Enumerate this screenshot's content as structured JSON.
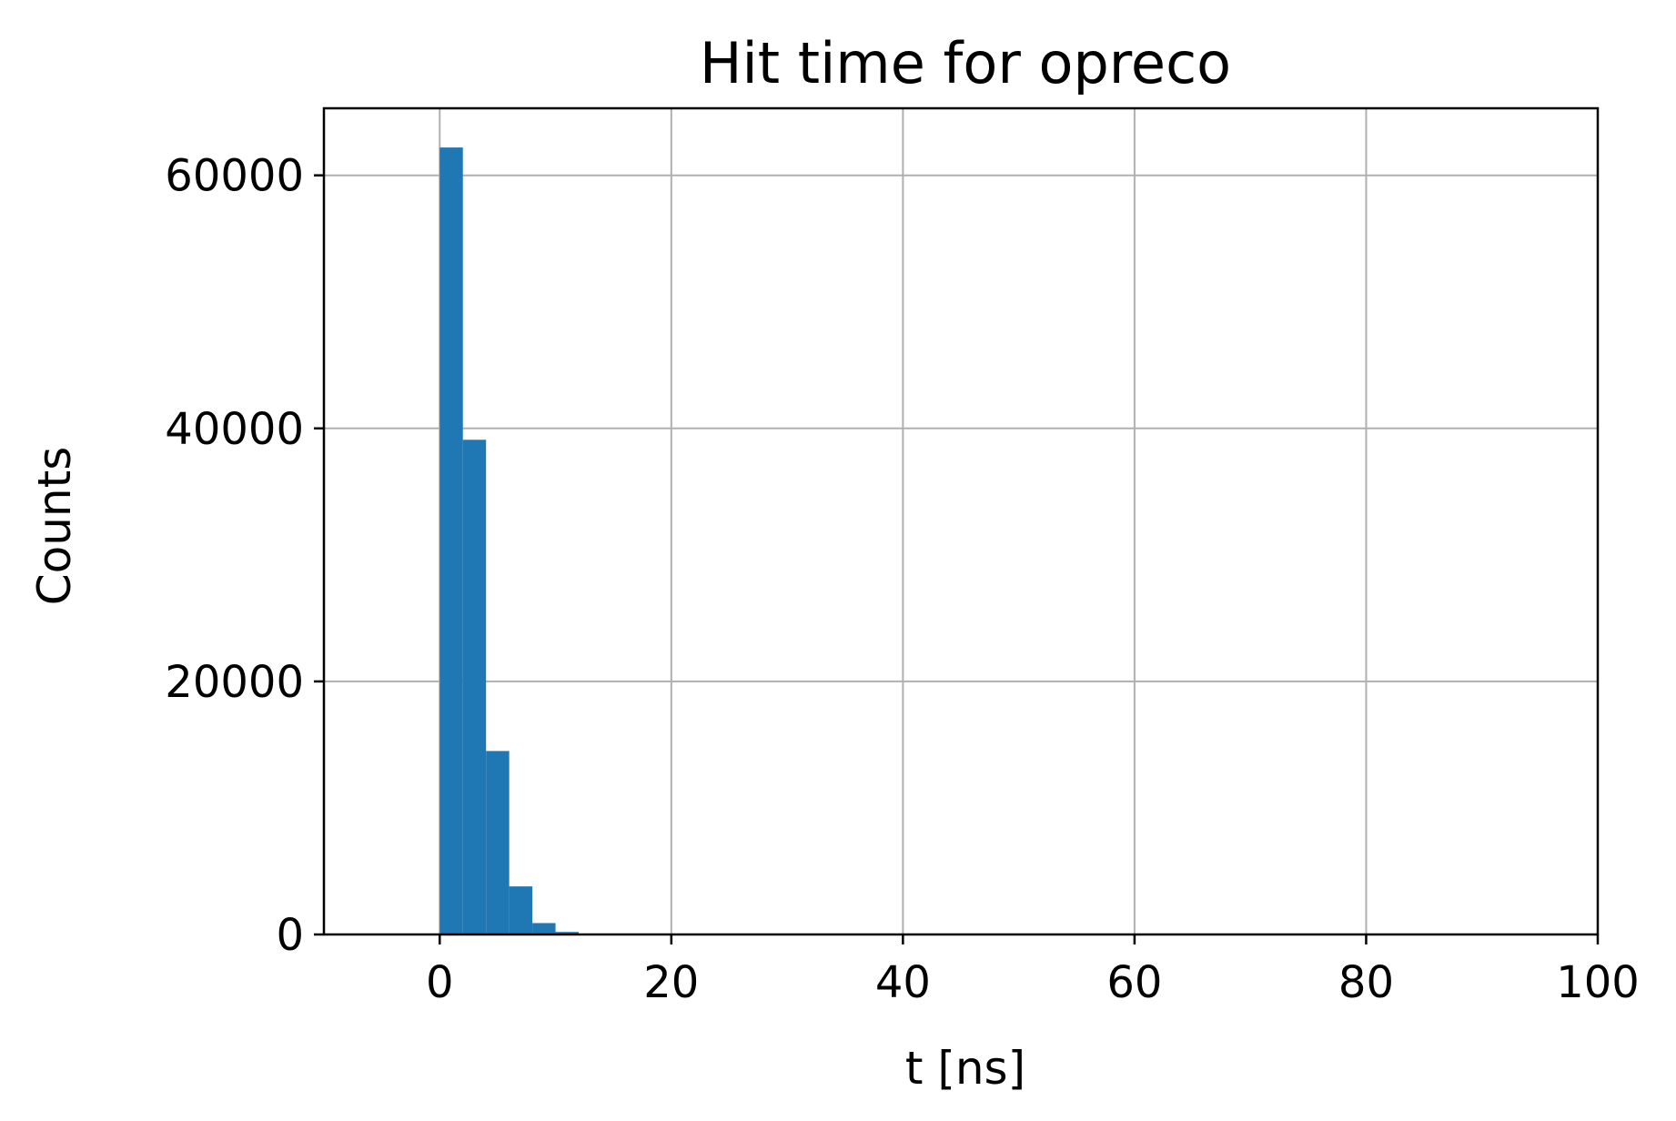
{
  "chart_data": {
    "type": "bar",
    "title": "Hit time for opreco",
    "xlabel": "t [ns]",
    "ylabel": "Counts",
    "xlim": [
      -10,
      100
    ],
    "ylim": [
      0,
      65300
    ],
    "grid": true,
    "xticks": [
      0,
      20,
      40,
      60,
      80,
      100
    ],
    "xtick_labels": [
      "0",
      "20",
      "40",
      "60",
      "80",
      "100"
    ],
    "yticks": [
      0,
      20000,
      40000,
      60000
    ],
    "ytick_labels": [
      "0",
      "20000",
      "40000",
      "60000"
    ],
    "bar_color": "#1f77b4",
    "bins": [
      {
        "x0": 0,
        "x1": 2,
        "value": 62200
      },
      {
        "x0": 2,
        "x1": 4,
        "value": 39100
      },
      {
        "x0": 4,
        "x1": 6,
        "value": 14500
      },
      {
        "x0": 6,
        "x1": 8,
        "value": 3800
      },
      {
        "x0": 8,
        "x1": 10,
        "value": 900
      },
      {
        "x0": 10,
        "x1": 12,
        "value": 200
      },
      {
        "x0": 12,
        "x1": 14,
        "value": 40
      }
    ]
  }
}
